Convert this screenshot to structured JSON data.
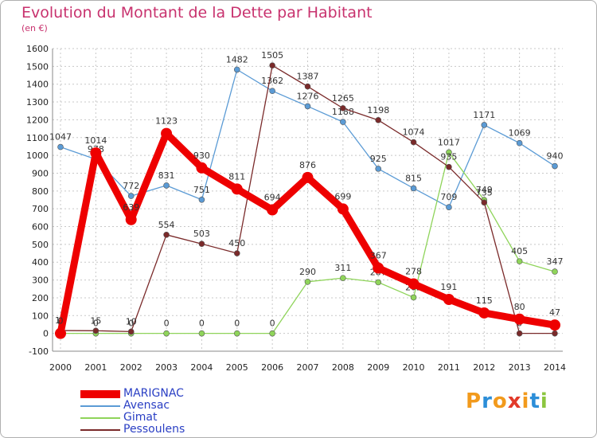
{
  "title": "Evolution du Montant de la Dette par Habitant",
  "unit_label": "(en €)",
  "logo": {
    "text": "Proxiti",
    "colors": [
      "#f29a1c",
      "#2c8ed8",
      "#f29a1c",
      "#e23a2a",
      "#f29a1c",
      "#2c8ed8",
      "#8cc63f"
    ]
  },
  "chart_data": {
    "type": "line",
    "title": "Evolution du Montant de la Dette par Habitant",
    "ylabel": "(en €)",
    "xlabel": "",
    "ylim": [
      -100,
      1600
    ],
    "yticks": [
      "1600",
      "1500",
      "1400",
      "1300",
      "1200",
      "1100",
      "1000",
      "900",
      "800",
      "700",
      "600",
      "500",
      "400",
      "300",
      "200",
      "100",
      "0",
      "-100"
    ],
    "categories": [
      "2000",
      "2001",
      "2002",
      "2003",
      "2004",
      "2005",
      "2006",
      "2007",
      "2008",
      "2009",
      "2010",
      "2011",
      "2012",
      "2013",
      "2014"
    ],
    "grid": true,
    "legend": "bottom-left",
    "series": [
      {
        "name": "Avensac",
        "color": "#5b9bd5",
        "values": [
          1047,
          978,
          772,
          831,
          751,
          1482,
          1362,
          1276,
          1188,
          925,
          815,
          709,
          1171,
          1069,
          940
        ],
        "labels": [
          "1047",
          "978",
          "772",
          "831",
          "751",
          "1482",
          "1362",
          "1276",
          "1188",
          "925",
          "815",
          "709",
          "1171",
          "1069",
          "940"
        ]
      },
      {
        "name": "Gimat",
        "color": "#8fd45a",
        "values": [
          0,
          0,
          0,
          0,
          0,
          0,
          0,
          290,
          311,
          287,
          202,
          1017,
          749,
          405,
          347
        ],
        "labels": [
          "0",
          "0",
          "0",
          "0",
          "0",
          "0",
          "0",
          "290",
          "311",
          "287",
          "202",
          "1017",
          "749",
          "405",
          "347"
        ]
      },
      {
        "name": "Pessoulens",
        "color": "#7a2a2a",
        "values": [
          16,
          15,
          10,
          554,
          503,
          450,
          1505,
          1387,
          1265,
          1198,
          1074,
          935,
          735,
          0,
          0
        ],
        "labels": [
          "16",
          "15",
          "10",
          "554",
          "503",
          "450",
          "1505",
          "1387",
          "1265",
          "1198",
          "1074",
          "935",
          "735",
          "0",
          "0"
        ]
      },
      {
        "name": "MARIGNAC",
        "color": "#ee0000",
        "values": [
          0,
          1014,
          639,
          1123,
          930,
          811,
          694,
          876,
          699,
          367,
          278,
          191,
          115,
          80,
          47
        ],
        "labels": [
          "0",
          "1014",
          "639",
          "1123",
          "930",
          "811",
          "694",
          "876",
          "699",
          "367",
          "278",
          "191",
          "115",
          "80",
          "47"
        ]
      }
    ]
  }
}
